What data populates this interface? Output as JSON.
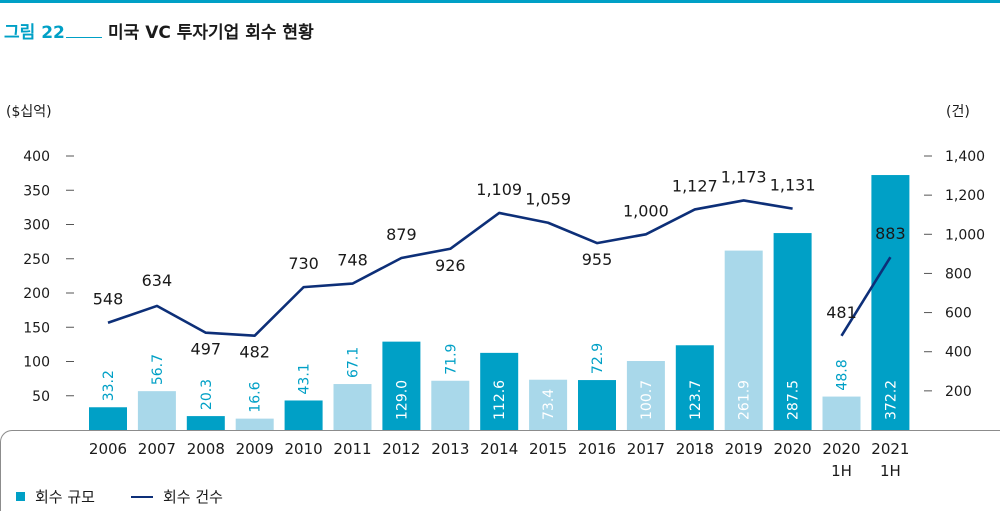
{
  "figure": {
    "label": "그림 22",
    "title": "미국 VC 투자기업 회수 현황"
  },
  "legend": {
    "bar_label": "회수 규모",
    "line_label": "회수 건수"
  },
  "colors": {
    "bar_dark": "#00a0c6",
    "bar_light": "#a9d8ea",
    "line": "#0d2f78",
    "accent": "#00a0c6"
  },
  "chart_data": {
    "type": "bar",
    "categories": [
      "2006",
      "2007",
      "2008",
      "2009",
      "2010",
      "2011",
      "2012",
      "2013",
      "2014",
      "2015",
      "2016",
      "2017",
      "2018",
      "2019",
      "2020",
      "2020\n1H",
      "2021\n1H"
    ],
    "y_left_label": "($십억)",
    "y_right_label": "(건)",
    "y_left_ticks": [
      "50",
      "100",
      "150",
      "200",
      "250",
      "300",
      "350",
      "400"
    ],
    "y_right_ticks": [
      "200",
      "400",
      "600",
      "800",
      "1,000",
      "1,200",
      "1,400"
    ],
    "ylim_left": [
      0,
      400
    ],
    "ylim_right": [
      0,
      1400
    ],
    "series": [
      {
        "name": "회수 규모",
        "kind": "bar",
        "axis": "left",
        "values": [
          33.2,
          56.7,
          20.3,
          16.6,
          43.1,
          67.1,
          129.0,
          71.9,
          112.6,
          73.4,
          72.9,
          100.7,
          123.7,
          261.9,
          287.5,
          48.8,
          372.2
        ],
        "labels": [
          "33.2",
          "56.7",
          "20.3",
          "16.6",
          "43.1",
          "67.1",
          "129.0",
          "71.9",
          "112.6",
          "73.4",
          "72.9",
          "100.7",
          "123.7",
          "261.9",
          "287.5",
          "48.8",
          "372.2"
        ],
        "shade": [
          "dark",
          "light",
          "dark",
          "light",
          "dark",
          "light",
          "dark",
          "light",
          "dark",
          "light",
          "dark",
          "light",
          "dark",
          "light",
          "dark",
          "light",
          "dark"
        ]
      },
      {
        "name": "회수 건수",
        "kind": "line",
        "axis": "right",
        "values": [
          548,
          634,
          497,
          482,
          730,
          748,
          879,
          926,
          1109,
          1059,
          955,
          1000,
          1127,
          1173,
          1131,
          481,
          883
        ],
        "labels": [
          "548",
          "634",
          "497",
          "482",
          "730",
          "748",
          "879",
          "926",
          "1,109",
          "1,059",
          "955",
          "1,000",
          "1,127",
          "1,173",
          "1,131",
          "481",
          "883"
        ],
        "segments": [
          [
            0,
            14
          ],
          [
            15,
            16
          ]
        ]
      }
    ]
  }
}
